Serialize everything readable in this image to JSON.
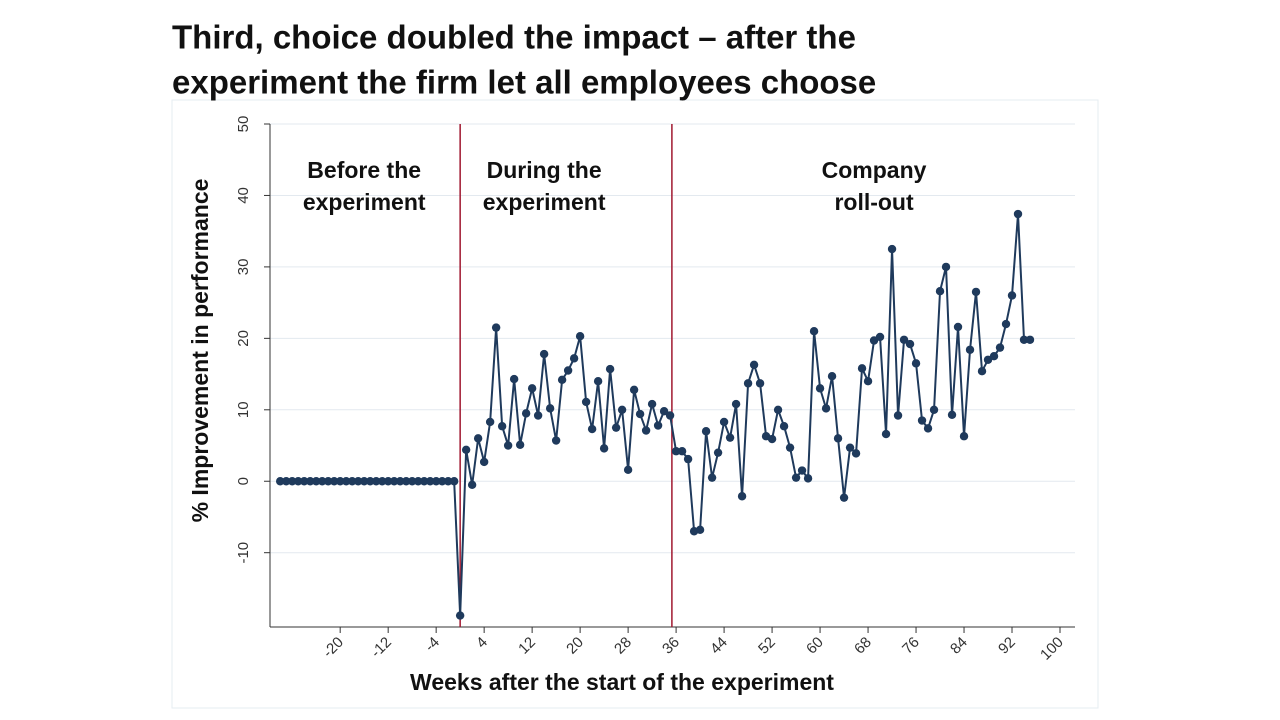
{
  "chart_data": {
    "type": "line",
    "title_lines": [
      "Third, choice doubled the impact – after the",
      "experiment the firm let all employees choose"
    ],
    "ylabel": "% Improvement in performance",
    "xlabel": "Weeks after the start of the experiment",
    "annotations": [
      {
        "x": -16,
        "lines": [
          "Before the",
          "experiment"
        ]
      },
      {
        "x": 14,
        "lines": [
          "During the",
          "experiment"
        ]
      },
      {
        "x": 69,
        "lines": [
          "Company",
          "roll-out"
        ]
      }
    ],
    "vlines": [
      0,
      35.3
    ],
    "vline_color": "#a01830",
    "grid": true,
    "xlim": [
      -31.7,
      102.5
    ],
    "ylim": [
      -20.4,
      50
    ],
    "xticks": [
      -20,
      -12,
      -4,
      4,
      12,
      20,
      28,
      36,
      44,
      52,
      60,
      68,
      76,
      84,
      92,
      100
    ],
    "yticks": [
      -10,
      0,
      10,
      20,
      30,
      40,
      50
    ],
    "series": [
      {
        "color": "#1f3a5c",
        "x": [
          -30,
          -29,
          -28,
          -27,
          -26,
          -25,
          -24,
          -23,
          -22,
          -21,
          -20,
          -19,
          -18,
          -17,
          -16,
          -15,
          -14,
          -13,
          -12,
          -11,
          -10,
          -9,
          -8,
          -7,
          -6,
          -5,
          -4,
          -3,
          -2,
          -1,
          0,
          1,
          2,
          3,
          4,
          5,
          6,
          7,
          8,
          9,
          10,
          11,
          12,
          13,
          14,
          15,
          16,
          17,
          18,
          19,
          20,
          21,
          22,
          23,
          24,
          25,
          26,
          27,
          28,
          29,
          30,
          31,
          32,
          33,
          34,
          35,
          36,
          37,
          38,
          39,
          40,
          41,
          42,
          43,
          44,
          45,
          46,
          47,
          48,
          49,
          50,
          51,
          52,
          53,
          54,
          55,
          56,
          57,
          58,
          59,
          60,
          61,
          62,
          63,
          64,
          65,
          66,
          67,
          68,
          69,
          70,
          71,
          72,
          73,
          74,
          75,
          76,
          77,
          78,
          79,
          80,
          81,
          82,
          83,
          84,
          85,
          86,
          87,
          88,
          89,
          90,
          91,
          92,
          93,
          94,
          95
        ],
        "values": [
          0,
          0,
          0,
          0,
          0,
          0,
          0,
          0,
          0,
          0,
          0,
          0,
          0,
          0,
          0,
          0,
          0,
          0,
          0,
          0,
          0,
          0,
          0,
          0,
          0,
          0,
          0,
          0,
          0,
          0,
          -18.8,
          4.4,
          -0.5,
          6,
          2.7,
          8.3,
          21.5,
          7.7,
          5,
          14.3,
          5.1,
          9.5,
          13,
          9.2,
          17.8,
          10.2,
          5.7,
          14.2,
          15.5,
          17.2,
          20.3,
          11.1,
          7.3,
          14,
          4.6,
          15.7,
          7.5,
          10,
          1.6,
          12.8,
          9.4,
          7.1,
          10.8,
          7.8,
          9.8,
          9.2,
          4.2,
          4.2,
          3.1,
          -7,
          -6.8,
          7,
          0.5,
          4,
          8.3,
          6.1,
          10.8,
          -2.1,
          13.7,
          16.3,
          13.7,
          6.3,
          5.9,
          10,
          7.7,
          4.7,
          0.5,
          1.5,
          0.4,
          21,
          13,
          10.2,
          14.7,
          6,
          -2.3,
          4.7,
          3.9,
          15.8,
          14,
          19.7,
          20.2,
          6.6,
          32.5,
          9.2,
          19.8,
          19.2,
          16.5,
          8.5,
          7.4,
          10,
          26.6,
          30,
          9.3,
          21.6,
          6.3,
          18.4,
          26.5,
          15.4,
          17,
          17.5,
          18.7,
          22,
          26,
          37.4,
          19.8,
          19.8
        ]
      }
    ]
  }
}
